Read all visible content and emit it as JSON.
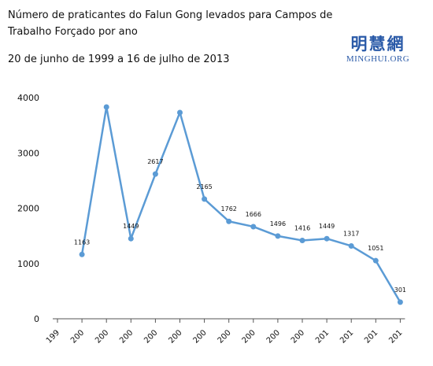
{
  "header": {
    "title": "Número de praticantes do Falun Gong levados para Campos de Trabalho Forçado por ano",
    "subtitle": "20 de junho de 1999 a 16 de julho de 2013"
  },
  "logo": {
    "cjk": "明慧網",
    "site": "MINGHUI.ORG"
  },
  "chart_data": {
    "type": "line",
    "title": "Número de praticantes do Falun Gong levados para Campos de Trabalho Forçado por ano",
    "subtitle": "20 de junho de 1999 a 16 de julho de 2013",
    "categories": [
      "199",
      "200",
      "200",
      "200",
      "200",
      "200",
      "200",
      "200",
      "200",
      "200",
      "200",
      "201",
      "201",
      "201",
      "201"
    ],
    "series": [
      {
        "values": [
          null,
          1163,
          3830,
          1449,
          2617,
          3730,
          2165,
          1762,
          1666,
          1496,
          1416,
          1449,
          1317,
          1051,
          301
        ]
      }
    ],
    "data_labels": [
      null,
      "1163",
      null,
      "1449",
      "2617",
      null,
      "2165",
      "1762",
      "1666",
      "1496",
      "1416",
      "1449",
      "1317",
      "1051",
      "301"
    ],
    "y_ticks": [
      0,
      1000,
      2000,
      3000,
      4000
    ],
    "ylim": [
      0,
      4000
    ],
    "xlabel": "",
    "ylabel": "",
    "grid": false,
    "colors": {
      "line": "#5b9bd5",
      "axis": "#555555",
      "text": "#111111"
    }
  }
}
